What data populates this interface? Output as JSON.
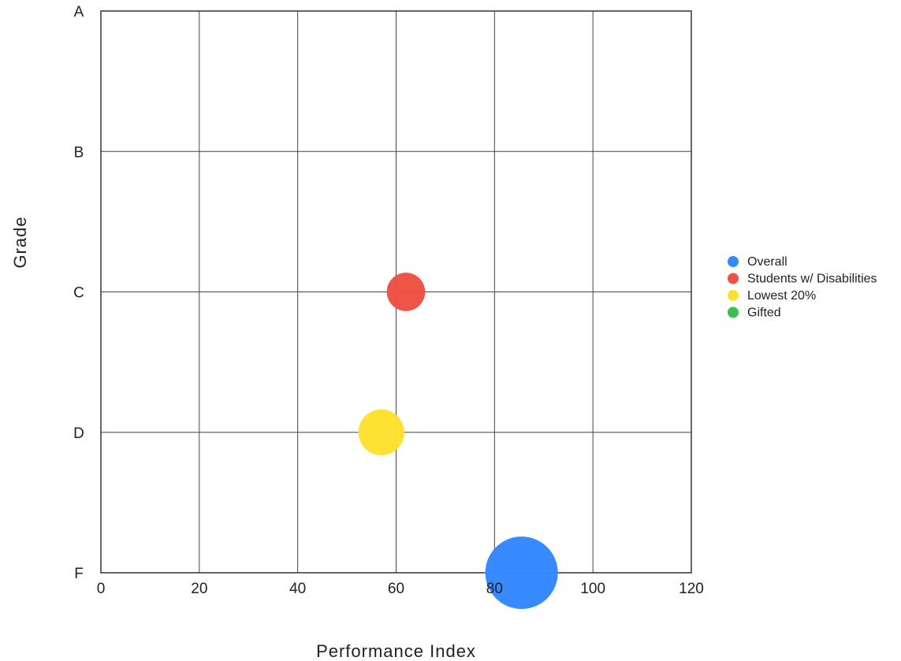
{
  "chart_data": {
    "type": "scatter",
    "subtype": "bubble",
    "title": "",
    "xlabel": "Performance Index",
    "ylabel": "Grade",
    "xlim": [
      0,
      120
    ],
    "x_ticks": [
      0,
      20,
      40,
      60,
      80,
      100,
      120
    ],
    "y_categories": [
      "F",
      "D",
      "C",
      "B",
      "A"
    ],
    "grid": true,
    "legend_position": "right",
    "series": [
      {
        "name": "Overall",
        "color": "#3388ff",
        "x": 85.5,
        "y": "F",
        "size": 1.0
      },
      {
        "name": "Students w/ Disabilities",
        "color": "#ef5242",
        "x": 62,
        "y": "C",
        "size": 0.28
      },
      {
        "name": "Lowest 20%",
        "color": "#fde12f",
        "x": 57,
        "y": "D",
        "size": 0.4
      },
      {
        "name": "Gifted",
        "color": "#3dbe50",
        "x": null,
        "y": null,
        "size": 0
      }
    ]
  }
}
